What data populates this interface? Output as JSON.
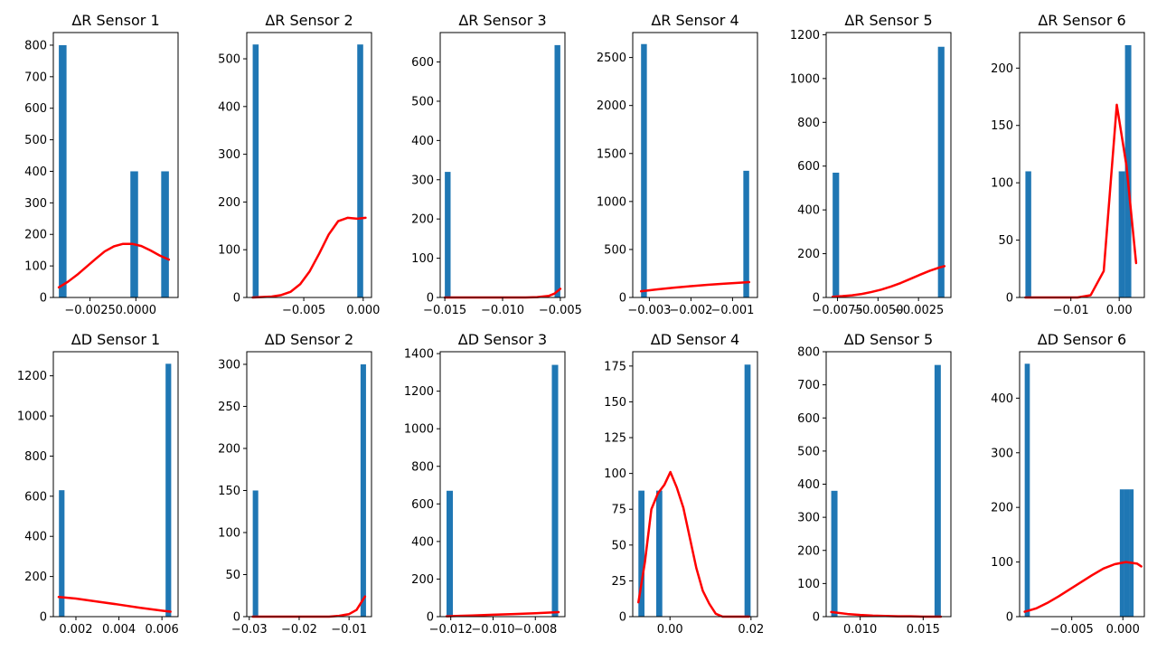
{
  "figure": {
    "background": "#ffffff"
  },
  "colors": {
    "bars": "#1f77b4",
    "fit_curve": "#ff0000"
  },
  "chart_data": [
    {
      "type": "bar",
      "title": "ΔR Sensor 1",
      "xlim": [
        -0.0045,
        0.0023
      ],
      "ylim": [
        0,
        840
      ],
      "xticks": [
        {
          "v": -0.0025,
          "label": "−0.0025"
        },
        {
          "v": 0.0,
          "label": "0.0000"
        }
      ],
      "yticks": [
        {
          "v": 0,
          "label": "0"
        },
        {
          "v": 100,
          "label": "100"
        },
        {
          "v": 200,
          "label": "200"
        },
        {
          "v": 300,
          "label": "300"
        },
        {
          "v": 400,
          "label": "400"
        },
        {
          "v": 500,
          "label": "500"
        },
        {
          "v": 600,
          "label": "600"
        },
        {
          "v": 700,
          "label": "700"
        },
        {
          "v": 800,
          "label": "800"
        }
      ],
      "bars": [
        {
          "x0": -0.0042,
          "x1": -0.00378,
          "count": 800
        },
        {
          "x0": -0.0003,
          "x1": 0.00012,
          "count": 400
        },
        {
          "x0": 0.00138,
          "x1": 0.0018,
          "count": 400
        }
      ],
      "fit_curve": {
        "x": [
          -0.0042,
          -0.0037,
          -0.0032,
          -0.0027,
          -0.0022,
          -0.0017,
          -0.0012,
          -0.0007,
          -0.0002,
          0.0003,
          0.0008,
          0.0013,
          0.0018
        ],
        "y": [
          32,
          50,
          72,
          97,
          122,
          146,
          162,
          170,
          170,
          163,
          149,
          133,
          120
        ]
      }
    },
    {
      "type": "bar",
      "title": "ΔR Sensor 2",
      "xlim": [
        -0.0098,
        0.0007
      ],
      "ylim": [
        0,
        555
      ],
      "xticks": [
        {
          "v": -0.005,
          "label": "−0.005"
        },
        {
          "v": 0.0,
          "label": "0.000"
        }
      ],
      "yticks": [
        {
          "v": 0,
          "label": "0"
        },
        {
          "v": 100,
          "label": "100"
        },
        {
          "v": 200,
          "label": "200"
        },
        {
          "v": 300,
          "label": "300"
        },
        {
          "v": 400,
          "label": "400"
        },
        {
          "v": 500,
          "label": "500"
        }
      ],
      "bars": [
        {
          "x0": -0.0093,
          "x1": -0.0088,
          "count": 530
        },
        {
          "x0": -0.0005,
          "x1": 0.0,
          "count": 530
        }
      ],
      "fit_curve": {
        "x": [
          -0.0093,
          -0.0085,
          -0.0077,
          -0.0069,
          -0.0061,
          -0.0053,
          -0.0045,
          -0.0037,
          -0.0029,
          -0.0021,
          -0.0013,
          -0.0005,
          0.0002
        ],
        "y": [
          0,
          1,
          2,
          5,
          12,
          28,
          55,
          92,
          132,
          160,
          167,
          165,
          167
        ]
      }
    },
    {
      "type": "bar",
      "title": "ΔR Sensor 3",
      "xlim": [
        -0.0154,
        -0.0046
      ],
      "ylim": [
        0,
        675
      ],
      "xticks": [
        {
          "v": -0.015,
          "label": "−0.015"
        },
        {
          "v": -0.01,
          "label": "−0.010"
        },
        {
          "v": -0.005,
          "label": "−0.005"
        }
      ],
      "yticks": [
        {
          "v": 0,
          "label": "0"
        },
        {
          "v": 100,
          "label": "100"
        },
        {
          "v": 200,
          "label": "200"
        },
        {
          "v": 300,
          "label": "300"
        },
        {
          "v": 400,
          "label": "400"
        },
        {
          "v": 500,
          "label": "500"
        },
        {
          "v": 600,
          "label": "600"
        }
      ],
      "bars": [
        {
          "x0": -0.015,
          "x1": -0.0145,
          "count": 320
        },
        {
          "x0": -0.0055,
          "x1": -0.005,
          "count": 643
        }
      ],
      "fit_curve": {
        "x": [
          -0.015,
          -0.014,
          -0.013,
          -0.012,
          -0.011,
          -0.01,
          -0.009,
          -0.008,
          -0.007,
          -0.006,
          -0.0055,
          -0.005
        ],
        "y": [
          0,
          0,
          0,
          0,
          0,
          0,
          0,
          0,
          1,
          4,
          10,
          22
        ]
      }
    },
    {
      "type": "bar",
      "title": "ΔR Sensor 4",
      "xlim": [
        -0.0034,
        -0.0004
      ],
      "ylim": [
        0,
        2760
      ],
      "xticks": [
        {
          "v": -0.003,
          "label": "−0.003"
        },
        {
          "v": -0.002,
          "label": "−0.002"
        },
        {
          "v": -0.001,
          "label": "−0.001"
        }
      ],
      "yticks": [
        {
          "v": 0,
          "label": "0"
        },
        {
          "v": 500,
          "label": "500"
        },
        {
          "v": 1000,
          "label": "1000"
        },
        {
          "v": 1500,
          "label": "1500"
        },
        {
          "v": 2000,
          "label": "2000"
        },
        {
          "v": 2500,
          "label": "2500"
        }
      ],
      "bars": [
        {
          "x0": -0.0032,
          "x1": -0.00306,
          "count": 2640
        },
        {
          "x0": -0.00074,
          "x1": -0.0006,
          "count": 1320
        }
      ],
      "fit_curve": {
        "x": [
          -0.0032,
          -0.0028,
          -0.0024,
          -0.002,
          -0.0016,
          -0.0012,
          -0.0008,
          -0.0006
        ],
        "y": [
          65,
          85,
          103,
          118,
          132,
          144,
          154,
          160
        ]
      }
    },
    {
      "type": "bar",
      "title": "ΔR Sensor 5",
      "xlim": [
        -0.0082,
        -0.0005
      ],
      "ylim": [
        0,
        1210
      ],
      "xticks": [
        {
          "v": -0.0075,
          "label": "−0.0075"
        },
        {
          "v": -0.005,
          "label": "−0.0050"
        },
        {
          "v": -0.0025,
          "label": "−0.0025"
        }
      ],
      "yticks": [
        {
          "v": 0,
          "label": "0"
        },
        {
          "v": 200,
          "label": "200"
        },
        {
          "v": 400,
          "label": "400"
        },
        {
          "v": 600,
          "label": "600"
        },
        {
          "v": 800,
          "label": "800"
        },
        {
          "v": 1000,
          "label": "1000"
        },
        {
          "v": 1200,
          "label": "1200"
        }
      ],
      "bars": [
        {
          "x0": -0.0078,
          "x1": -0.0074,
          "count": 570
        },
        {
          "x0": -0.0013,
          "x1": -0.0009,
          "count": 1145
        }
      ],
      "fit_curve": {
        "x": [
          -0.0078,
          -0.0072,
          -0.0066,
          -0.006,
          -0.0054,
          -0.0048,
          -0.0042,
          -0.0036,
          -0.003,
          -0.0024,
          -0.0018,
          -0.0012,
          -0.0009
        ],
        "y": [
          3,
          6,
          10,
          16,
          25,
          36,
          50,
          66,
          85,
          104,
          122,
          137,
          143
        ]
      }
    },
    {
      "type": "bar",
      "title": "ΔR Sensor 6",
      "xlim": [
        -0.0206,
        0.0052
      ],
      "ylim": [
        0,
        231
      ],
      "xticks": [
        {
          "v": -0.01,
          "label": "−0.01"
        },
        {
          "v": 0.0,
          "label": "0.00"
        }
      ],
      "yticks": [
        {
          "v": 0,
          "label": "0"
        },
        {
          "v": 50,
          "label": "50"
        },
        {
          "v": 100,
          "label": "100"
        },
        {
          "v": 150,
          "label": "150"
        },
        {
          "v": 200,
          "label": "200"
        }
      ],
      "bars": [
        {
          "x0": -0.0194,
          "x1": -0.0182,
          "count": 110
        },
        {
          "x0": -0.0001,
          "x1": 0.0012,
          "count": 110
        },
        {
          "x0": 0.0012,
          "x1": 0.0025,
          "count": 220
        }
      ],
      "fit_curve": {
        "x": [
          -0.0194,
          -0.0167,
          -0.014,
          -0.0113,
          -0.0086,
          -0.0059,
          -0.0032,
          -0.0005,
          0.0015,
          0.0035
        ],
        "y": [
          0,
          0,
          0,
          0,
          0,
          2,
          23,
          168,
          115,
          30
        ]
      }
    },
    {
      "type": "bar",
      "title": "ΔD Sensor 1",
      "xlim": [
        0.00095,
        0.00675
      ],
      "ylim": [
        0,
        1320
      ],
      "xticks": [
        {
          "v": 0.002,
          "label": "0.002"
        },
        {
          "v": 0.004,
          "label": "0.004"
        },
        {
          "v": 0.006,
          "label": "0.006"
        }
      ],
      "yticks": [
        {
          "v": 0,
          "label": "0"
        },
        {
          "v": 200,
          "label": "200"
        },
        {
          "v": 400,
          "label": "400"
        },
        {
          "v": 600,
          "label": "600"
        },
        {
          "v": 800,
          "label": "800"
        },
        {
          "v": 1000,
          "label": "1000"
        },
        {
          "v": 1200,
          "label": "1200"
        }
      ],
      "bars": [
        {
          "x0": 0.00121,
          "x1": 0.00147,
          "count": 630
        },
        {
          "x0": 0.00617,
          "x1": 0.00643,
          "count": 1260
        }
      ],
      "fit_curve": {
        "x": [
          0.0012,
          0.002,
          0.003,
          0.004,
          0.005,
          0.006,
          0.0064
        ],
        "y": [
          98,
          90,
          75,
          60,
          44,
          30,
          25
        ]
      }
    },
    {
      "type": "bar",
      "title": "ΔD Sensor 2",
      "xlim": [
        -0.0305,
        -0.0055
      ],
      "ylim": [
        0,
        315
      ],
      "xticks": [
        {
          "v": -0.03,
          "label": "−0.03"
        },
        {
          "v": -0.02,
          "label": "−0.02"
        },
        {
          "v": -0.01,
          "label": "−0.01"
        }
      ],
      "yticks": [
        {
          "v": 0,
          "label": "0"
        },
        {
          "v": 50,
          "label": "50"
        },
        {
          "v": 100,
          "label": "100"
        },
        {
          "v": 150,
          "label": "150"
        },
        {
          "v": 200,
          "label": "200"
        },
        {
          "v": 250,
          "label": "250"
        },
        {
          "v": 300,
          "label": "300"
        }
      ],
      "bars": [
        {
          "x0": -0.0293,
          "x1": -0.0282,
          "count": 150
        },
        {
          "x0": -0.0077,
          "x1": -0.0066,
          "count": 300
        }
      ],
      "fit_curve": {
        "x": [
          -0.0293,
          -0.026,
          -0.023,
          -0.02,
          -0.017,
          -0.014,
          -0.012,
          -0.01,
          -0.0085,
          -0.0068
        ],
        "y": [
          0,
          0,
          0,
          0,
          0,
          0,
          1,
          3,
          8,
          24
        ]
      }
    },
    {
      "type": "bar",
      "title": "ΔD Sensor 3",
      "xlim": [
        -0.0125,
        -0.0066
      ],
      "ylim": [
        0,
        1410
      ],
      "xticks": [
        {
          "v": -0.012,
          "label": "−0.012"
        },
        {
          "v": -0.01,
          "label": "−0.010"
        },
        {
          "v": -0.008,
          "label": "−0.008"
        }
      ],
      "yticks": [
        {
          "v": 0,
          "label": "0"
        },
        {
          "v": 200,
          "label": "200"
        },
        {
          "v": 400,
          "label": "400"
        },
        {
          "v": 600,
          "label": "600"
        },
        {
          "v": 800,
          "label": "800"
        },
        {
          "v": 1000,
          "label": "1000"
        },
        {
          "v": 1200,
          "label": "1200"
        },
        {
          "v": 1400,
          "label": "1400"
        }
      ],
      "bars": [
        {
          "x0": -0.0122,
          "x1": -0.0119,
          "count": 670
        },
        {
          "x0": -0.00722,
          "x1": -0.00692,
          "count": 1340
        }
      ],
      "fit_curve": {
        "x": [
          -0.0122,
          -0.011,
          -0.01,
          -0.009,
          -0.008,
          -0.0069
        ],
        "y": [
          2,
          6,
          10,
          14,
          18,
          24
        ]
      }
    },
    {
      "type": "bar",
      "title": "ΔD Sensor 4",
      "xlim": [
        -0.0092,
        0.0216
      ],
      "ylim": [
        0,
        185
      ],
      "xticks": [
        {
          "v": 0.0,
          "label": "0.00"
        },
        {
          "v": 0.02,
          "label": "0.02"
        }
      ],
      "yticks": [
        {
          "v": 0,
          "label": "0"
        },
        {
          "v": 25,
          "label": "25"
        },
        {
          "v": 50,
          "label": "50"
        },
        {
          "v": 75,
          "label": "75"
        },
        {
          "v": 100,
          "label": "100"
        },
        {
          "v": 125,
          "label": "125"
        },
        {
          "v": 150,
          "label": "150"
        },
        {
          "v": 175,
          "label": "175"
        }
      ],
      "bars": [
        {
          "x0": -0.0078,
          "x1": -0.0063,
          "count": 88
        },
        {
          "x0": -0.0034,
          "x1": -0.0019,
          "count": 88
        },
        {
          "x0": 0.0184,
          "x1": 0.0199,
          "count": 176
        }
      ],
      "fit_curve": {
        "x": [
          -0.0078,
          -0.0062,
          -0.0046,
          -0.003,
          -0.0014,
          0.0001,
          0.0017,
          0.0033,
          0.0049,
          0.0065,
          0.0081,
          0.0097,
          0.0113,
          0.013,
          0.0146,
          0.0162,
          0.0178,
          0.0195
        ],
        "y": [
          10,
          38,
          75,
          86,
          92,
          101,
          90,
          76,
          55,
          34,
          18,
          9,
          2,
          0,
          0,
          0,
          0,
          0
        ]
      }
    },
    {
      "type": "bar",
      "title": "ΔD Sensor 5",
      "xlim": [
        0.0073,
        0.0172
      ],
      "ylim": [
        0,
        800
      ],
      "xticks": [
        {
          "v": 0.01,
          "label": "0.010"
        },
        {
          "v": 0.015,
          "label": "0.015"
        }
      ],
      "yticks": [
        {
          "v": 0,
          "label": "0"
        },
        {
          "v": 100,
          "label": "100"
        },
        {
          "v": 200,
          "label": "200"
        },
        {
          "v": 300,
          "label": "300"
        },
        {
          "v": 400,
          "label": "400"
        },
        {
          "v": 500,
          "label": "500"
        },
        {
          "v": 600,
          "label": "600"
        },
        {
          "v": 700,
          "label": "700"
        },
        {
          "v": 800,
          "label": "800"
        }
      ],
      "bars": [
        {
          "x0": 0.0077,
          "x1": 0.0082,
          "count": 380
        },
        {
          "x0": 0.0159,
          "x1": 0.0164,
          "count": 760
        }
      ],
      "fit_curve": {
        "x": [
          0.0077,
          0.009,
          0.01,
          0.011,
          0.012,
          0.013,
          0.014,
          0.015,
          0.0164
        ],
        "y": [
          14,
          8,
          5,
          3,
          2,
          1,
          1,
          0,
          0
        ]
      }
    },
    {
      "type": "bar",
      "title": "ΔD Sensor 6",
      "xlim": [
        -0.0101,
        0.0021
      ],
      "ylim": [
        0,
        485
      ],
      "xticks": [
        {
          "v": -0.005,
          "label": "−0.005"
        },
        {
          "v": 0.0,
          "label": "0.000"
        }
      ],
      "yticks": [
        {
          "v": 0,
          "label": "0"
        },
        {
          "v": 100,
          "label": "100"
        },
        {
          "v": 200,
          "label": "200"
        },
        {
          "v": 300,
          "label": "300"
        },
        {
          "v": 400,
          "label": "400"
        }
      ],
      "bars": [
        {
          "x0": -0.0096,
          "x1": -0.0091,
          "count": 463
        },
        {
          "x0": -0.0003,
          "x1": 0.00015,
          "count": 233
        },
        {
          "x0": 0.00015,
          "x1": 0.0006,
          "count": 233
        },
        {
          "x0": 0.0006,
          "x1": 0.00105,
          "count": 233
        }
      ],
      "fit_curve": {
        "x": [
          -0.0096,
          -0.0085,
          -0.0074,
          -0.0063,
          -0.0052,
          -0.0041,
          -0.003,
          -0.0019,
          -0.0008,
          0.0003,
          0.0014,
          0.0018
        ],
        "y": [
          9,
          15,
          25,
          37,
          50,
          63,
          76,
          88,
          96,
          100,
          97,
          92
        ]
      }
    }
  ]
}
